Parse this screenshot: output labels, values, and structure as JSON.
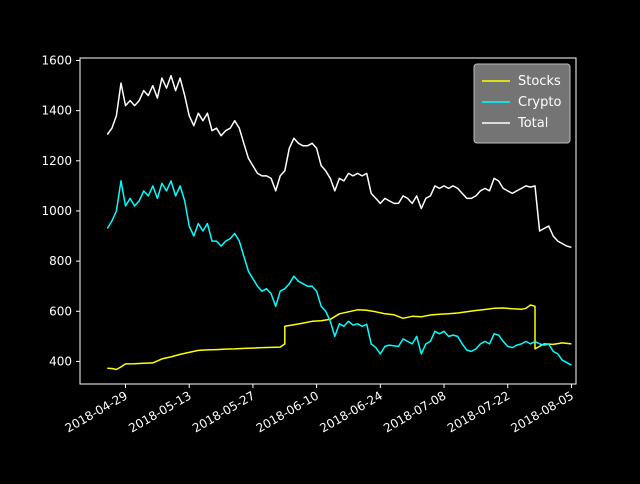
{
  "chart_data": {
    "type": "line",
    "title": "",
    "xlabel": "",
    "ylabel": "",
    "xlim": [
      "2018-04-19",
      "2018-08-06"
    ],
    "ylim": [
      310,
      1610
    ],
    "y_ticks": [
      400,
      600,
      800,
      1000,
      1200,
      1400,
      1600
    ],
    "x_ticks": [
      "2018-04-29",
      "2018-05-13",
      "2018-05-27",
      "2018-06-10",
      "2018-06-24",
      "2018-07-08",
      "2018-07-22",
      "2018-08-05"
    ],
    "grid": false,
    "legend_position": "top-right",
    "colors": {
      "background": "#000000",
      "axes": "#ffffff",
      "legend_bg": "#7a7a7a"
    },
    "series": [
      {
        "name": "Stocks",
        "color": "#ffff00",
        "points": [
          [
            "2018-04-25",
            373
          ],
          [
            "2018-04-26",
            372
          ],
          [
            "2018-04-27",
            368
          ],
          [
            "2018-04-28",
            378
          ],
          [
            "2018-04-29",
            390
          ],
          [
            "2018-05-01",
            391
          ],
          [
            "2018-05-03",
            393
          ],
          [
            "2018-05-05",
            394
          ],
          [
            "2018-05-07",
            410
          ],
          [
            "2018-05-09",
            418
          ],
          [
            "2018-05-11",
            428
          ],
          [
            "2018-05-13",
            436
          ],
          [
            "2018-05-15",
            444
          ],
          [
            "2018-05-17",
            446
          ],
          [
            "2018-05-19",
            447
          ],
          [
            "2018-05-21",
            449
          ],
          [
            "2018-05-23",
            450
          ],
          [
            "2018-05-25",
            452
          ],
          [
            "2018-05-27",
            453
          ],
          [
            "2018-05-29",
            455
          ],
          [
            "2018-05-31",
            456
          ],
          [
            "2018-06-02",
            457
          ],
          [
            "2018-06-03",
            470
          ],
          [
            "2018-06-03",
            540
          ],
          [
            "2018-06-05",
            546
          ],
          [
            "2018-06-07",
            553
          ],
          [
            "2018-06-09",
            560
          ],
          [
            "2018-06-11",
            562
          ],
          [
            "2018-06-13",
            568
          ],
          [
            "2018-06-15",
            590
          ],
          [
            "2018-06-17",
            598
          ],
          [
            "2018-06-19",
            606
          ],
          [
            "2018-06-21",
            604
          ],
          [
            "2018-06-23",
            598
          ],
          [
            "2018-06-25",
            590
          ],
          [
            "2018-06-27",
            586
          ],
          [
            "2018-06-29",
            572
          ],
          [
            "2018-07-01",
            580
          ],
          [
            "2018-07-03",
            578
          ],
          [
            "2018-07-05",
            585
          ],
          [
            "2018-07-07",
            588
          ],
          [
            "2018-07-09",
            590
          ],
          [
            "2018-07-11",
            593
          ],
          [
            "2018-07-13",
            598
          ],
          [
            "2018-07-15",
            603
          ],
          [
            "2018-07-17",
            607
          ],
          [
            "2018-07-19",
            612
          ],
          [
            "2018-07-21",
            613
          ],
          [
            "2018-07-23",
            610
          ],
          [
            "2018-07-25",
            608
          ],
          [
            "2018-07-26",
            612
          ],
          [
            "2018-07-27",
            625
          ],
          [
            "2018-07-28",
            620
          ],
          [
            "2018-07-28",
            450
          ],
          [
            "2018-07-30",
            470
          ],
          [
            "2018-08-01",
            468
          ],
          [
            "2018-08-03",
            474
          ],
          [
            "2018-08-05",
            470
          ]
        ]
      },
      {
        "name": "Crypto",
        "color": "#00ffff",
        "points": [
          [
            "2018-04-25",
            930
          ],
          [
            "2018-04-26",
            960
          ],
          [
            "2018-04-27",
            1000
          ],
          [
            "2018-04-28",
            1120
          ],
          [
            "2018-04-29",
            1020
          ],
          [
            "2018-04-30",
            1050
          ],
          [
            "2018-05-01",
            1020
          ],
          [
            "2018-05-02",
            1040
          ],
          [
            "2018-05-03",
            1080
          ],
          [
            "2018-05-04",
            1060
          ],
          [
            "2018-05-05",
            1100
          ],
          [
            "2018-05-06",
            1050
          ],
          [
            "2018-05-07",
            1110
          ],
          [
            "2018-05-08",
            1080
          ],
          [
            "2018-05-09",
            1120
          ],
          [
            "2018-05-10",
            1060
          ],
          [
            "2018-05-11",
            1100
          ],
          [
            "2018-05-12",
            1040
          ],
          [
            "2018-05-13",
            940
          ],
          [
            "2018-05-14",
            900
          ],
          [
            "2018-05-15",
            950
          ],
          [
            "2018-05-16",
            920
          ],
          [
            "2018-05-17",
            950
          ],
          [
            "2018-05-18",
            880
          ],
          [
            "2018-05-19",
            880
          ],
          [
            "2018-05-20",
            860
          ],
          [
            "2018-05-21",
            880
          ],
          [
            "2018-05-22",
            890
          ],
          [
            "2018-05-23",
            910
          ],
          [
            "2018-05-24",
            880
          ],
          [
            "2018-05-25",
            820
          ],
          [
            "2018-05-26",
            760
          ],
          [
            "2018-05-27",
            730
          ],
          [
            "2018-05-28",
            700
          ],
          [
            "2018-05-29",
            680
          ],
          [
            "2018-05-30",
            690
          ],
          [
            "2018-05-31",
            670
          ],
          [
            "2018-06-01",
            620
          ],
          [
            "2018-06-02",
            680
          ],
          [
            "2018-06-03",
            690
          ],
          [
            "2018-06-04",
            710
          ],
          [
            "2018-06-05",
            740
          ],
          [
            "2018-06-06",
            720
          ],
          [
            "2018-06-07",
            710
          ],
          [
            "2018-06-08",
            700
          ],
          [
            "2018-06-09",
            700
          ],
          [
            "2018-06-10",
            680
          ],
          [
            "2018-06-11",
            620
          ],
          [
            "2018-06-12",
            600
          ],
          [
            "2018-06-13",
            560
          ],
          [
            "2018-06-14",
            500
          ],
          [
            "2018-06-15",
            550
          ],
          [
            "2018-06-16",
            540
          ],
          [
            "2018-06-17",
            560
          ],
          [
            "2018-06-18",
            545
          ],
          [
            "2018-06-19",
            550
          ],
          [
            "2018-06-20",
            540
          ],
          [
            "2018-06-21",
            548
          ],
          [
            "2018-06-22",
            470
          ],
          [
            "2018-06-23",
            455
          ],
          [
            "2018-06-24",
            430
          ],
          [
            "2018-06-25",
            460
          ],
          [
            "2018-06-26",
            465
          ],
          [
            "2018-06-27",
            462
          ],
          [
            "2018-06-28",
            460
          ],
          [
            "2018-06-29",
            490
          ],
          [
            "2018-06-30",
            480
          ],
          [
            "2018-07-01",
            470
          ],
          [
            "2018-07-02",
            500
          ],
          [
            "2018-07-03",
            430
          ],
          [
            "2018-07-04",
            470
          ],
          [
            "2018-07-05",
            480
          ],
          [
            "2018-07-06",
            520
          ],
          [
            "2018-07-07",
            510
          ],
          [
            "2018-07-08",
            520
          ],
          [
            "2018-07-09",
            500
          ],
          [
            "2018-07-10",
            505
          ],
          [
            "2018-07-11",
            500
          ],
          [
            "2018-07-12",
            470
          ],
          [
            "2018-07-13",
            445
          ],
          [
            "2018-07-14",
            440
          ],
          [
            "2018-07-15",
            450
          ],
          [
            "2018-07-16",
            470
          ],
          [
            "2018-07-17",
            480
          ],
          [
            "2018-07-18",
            470
          ],
          [
            "2018-07-19",
            510
          ],
          [
            "2018-07-20",
            505
          ],
          [
            "2018-07-21",
            480
          ],
          [
            "2018-07-22",
            460
          ],
          [
            "2018-07-23",
            455
          ],
          [
            "2018-07-24",
            465
          ],
          [
            "2018-07-25",
            470
          ],
          [
            "2018-07-26",
            480
          ],
          [
            "2018-07-27",
            470
          ],
          [
            "2018-07-28",
            480
          ],
          [
            "2018-07-29",
            470
          ],
          [
            "2018-07-30",
            465
          ],
          [
            "2018-07-31",
            470
          ],
          [
            "2018-08-01",
            440
          ],
          [
            "2018-08-02",
            430
          ],
          [
            "2018-08-03",
            405
          ],
          [
            "2018-08-04",
            395
          ],
          [
            "2018-08-05",
            385
          ]
        ]
      },
      {
        "name": "Total",
        "color": "#ffffff",
        "points": [
          [
            "2018-04-25",
            1305
          ],
          [
            "2018-04-26",
            1330
          ],
          [
            "2018-04-27",
            1380
          ],
          [
            "2018-04-28",
            1510
          ],
          [
            "2018-04-29",
            1420
          ],
          [
            "2018-04-30",
            1440
          ],
          [
            "2018-05-01",
            1420
          ],
          [
            "2018-05-02",
            1440
          ],
          [
            "2018-05-03",
            1480
          ],
          [
            "2018-05-04",
            1460
          ],
          [
            "2018-05-05",
            1500
          ],
          [
            "2018-05-06",
            1450
          ],
          [
            "2018-05-07",
            1530
          ],
          [
            "2018-05-08",
            1490
          ],
          [
            "2018-05-09",
            1540
          ],
          [
            "2018-05-10",
            1480
          ],
          [
            "2018-05-11",
            1530
          ],
          [
            "2018-05-12",
            1460
          ],
          [
            "2018-05-13",
            1380
          ],
          [
            "2018-05-14",
            1340
          ],
          [
            "2018-05-15",
            1390
          ],
          [
            "2018-05-16",
            1360
          ],
          [
            "2018-05-17",
            1390
          ],
          [
            "2018-05-18",
            1320
          ],
          [
            "2018-05-19",
            1330
          ],
          [
            "2018-05-20",
            1300
          ],
          [
            "2018-05-21",
            1320
          ],
          [
            "2018-05-22",
            1330
          ],
          [
            "2018-05-23",
            1360
          ],
          [
            "2018-05-24",
            1330
          ],
          [
            "2018-05-25",
            1270
          ],
          [
            "2018-05-26",
            1210
          ],
          [
            "2018-05-27",
            1180
          ],
          [
            "2018-05-28",
            1150
          ],
          [
            "2018-05-29",
            1140
          ],
          [
            "2018-05-30",
            1140
          ],
          [
            "2018-05-31",
            1130
          ],
          [
            "2018-06-01",
            1080
          ],
          [
            "2018-06-02",
            1140
          ],
          [
            "2018-06-03",
            1160
          ],
          [
            "2018-06-04",
            1250
          ],
          [
            "2018-06-05",
            1290
          ],
          [
            "2018-06-06",
            1270
          ],
          [
            "2018-06-07",
            1260
          ],
          [
            "2018-06-08",
            1260
          ],
          [
            "2018-06-09",
            1270
          ],
          [
            "2018-06-10",
            1250
          ],
          [
            "2018-06-11",
            1180
          ],
          [
            "2018-06-12",
            1160
          ],
          [
            "2018-06-13",
            1130
          ],
          [
            "2018-06-14",
            1080
          ],
          [
            "2018-06-15",
            1130
          ],
          [
            "2018-06-16",
            1120
          ],
          [
            "2018-06-17",
            1150
          ],
          [
            "2018-06-18",
            1140
          ],
          [
            "2018-06-19",
            1150
          ],
          [
            "2018-06-20",
            1140
          ],
          [
            "2018-06-21",
            1150
          ],
          [
            "2018-06-22",
            1070
          ],
          [
            "2018-06-23",
            1050
          ],
          [
            "2018-06-24",
            1030
          ],
          [
            "2018-06-25",
            1050
          ],
          [
            "2018-06-26",
            1040
          ],
          [
            "2018-06-27",
            1030
          ],
          [
            "2018-06-28",
            1030
          ],
          [
            "2018-06-29",
            1060
          ],
          [
            "2018-06-30",
            1050
          ],
          [
            "2018-07-01",
            1030
          ],
          [
            "2018-07-02",
            1060
          ],
          [
            "2018-07-03",
            1010
          ],
          [
            "2018-07-04",
            1050
          ],
          [
            "2018-07-05",
            1060
          ],
          [
            "2018-07-06",
            1100
          ],
          [
            "2018-07-07",
            1090
          ],
          [
            "2018-07-08",
            1100
          ],
          [
            "2018-07-09",
            1090
          ],
          [
            "2018-07-10",
            1100
          ],
          [
            "2018-07-11",
            1090
          ],
          [
            "2018-07-12",
            1070
          ],
          [
            "2018-07-13",
            1050
          ],
          [
            "2018-07-14",
            1050
          ],
          [
            "2018-07-15",
            1060
          ],
          [
            "2018-07-16",
            1080
          ],
          [
            "2018-07-17",
            1090
          ],
          [
            "2018-07-18",
            1080
          ],
          [
            "2018-07-19",
            1130
          ],
          [
            "2018-07-20",
            1120
          ],
          [
            "2018-07-21",
            1090
          ],
          [
            "2018-07-22",
            1080
          ],
          [
            "2018-07-23",
            1070
          ],
          [
            "2018-07-24",
            1080
          ],
          [
            "2018-07-25",
            1090
          ],
          [
            "2018-07-26",
            1100
          ],
          [
            "2018-07-27",
            1095
          ],
          [
            "2018-07-28",
            1100
          ],
          [
            "2018-07-29",
            920
          ],
          [
            "2018-07-30",
            930
          ],
          [
            "2018-07-31",
            940
          ],
          [
            "2018-08-01",
            900
          ],
          [
            "2018-08-02",
            880
          ],
          [
            "2018-08-03",
            870
          ],
          [
            "2018-08-04",
            860
          ],
          [
            "2018-08-05",
            855
          ]
        ]
      }
    ]
  }
}
